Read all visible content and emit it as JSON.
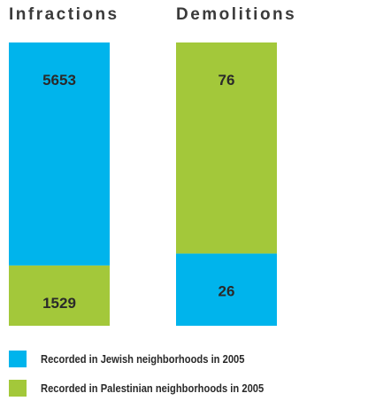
{
  "chart_data": [
    {
      "type": "bar",
      "title": "Infractions",
      "stacked": true,
      "series": [
        {
          "name": "Recorded in Jewish neighborhoods in 2005",
          "value": 5653,
          "color": "#00b4ec"
        },
        {
          "name": "Recorded in Palestinian neighborhoods in 2005",
          "value": 1529,
          "color": "#a3c83a"
        }
      ],
      "stack_order_bottom_to_top": [
        "Recorded in Palestinian neighborhoods in 2005",
        "Recorded in Jewish neighborhoods in 2005"
      ]
    },
    {
      "type": "bar",
      "title": "Demolitions",
      "stacked": true,
      "series": [
        {
          "name": "Recorded in Jewish neighborhoods in 2005",
          "value": 26,
          "color": "#00b4ec"
        },
        {
          "name": "Recorded in Palestinian neighborhoods in 2005",
          "value": 76,
          "color": "#a3c83a"
        }
      ],
      "stack_order_bottom_to_top": [
        "Recorded in Jewish neighborhoods in 2005",
        "Recorded in Palestinian neighborhoods in 2005"
      ]
    }
  ],
  "legend": [
    {
      "label": "Recorded in Jewish neighborhoods in 2005",
      "color": "#00b4ec"
    },
    {
      "label": "Recorded in Palestinian neighborhoods in 2005",
      "color": "#a3c83a"
    }
  ]
}
